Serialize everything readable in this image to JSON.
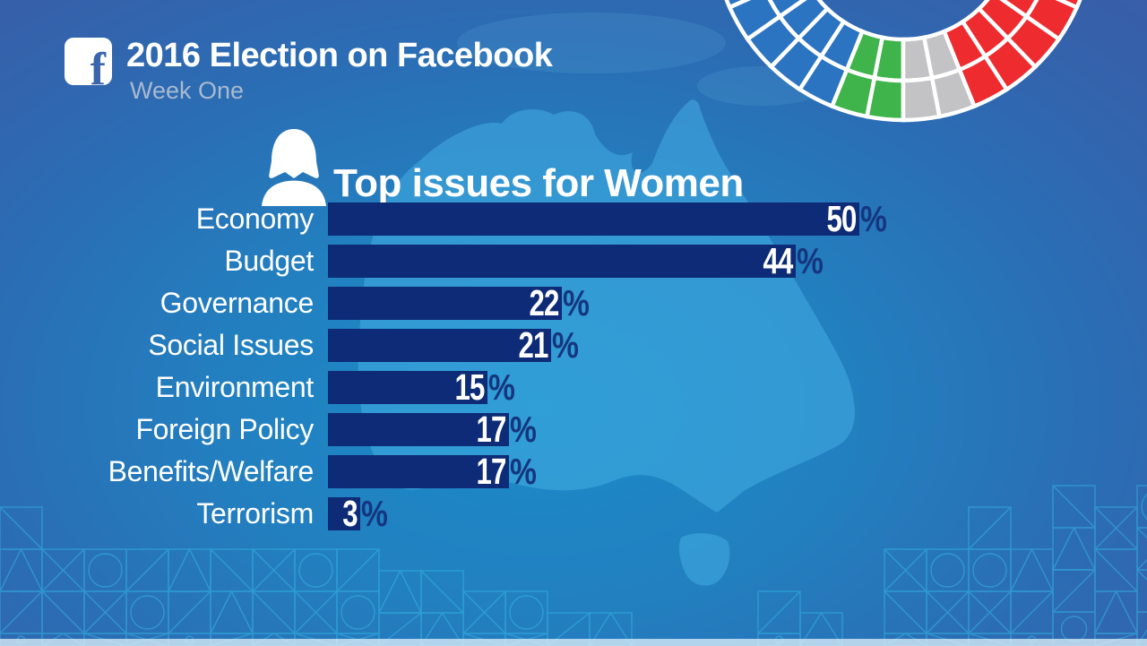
{
  "header": {
    "logo_letter": "f",
    "title": "2016 Election on Facebook",
    "subtitle": "Week One"
  },
  "chart_data": {
    "type": "bar",
    "orientation": "horizontal",
    "title": "Top issues for Women",
    "categories": [
      "Economy",
      "Budget",
      "Governance",
      "Social Issues",
      "Environment",
      "Foreign Policy",
      "Benefits/Welfare",
      "Terrorism"
    ],
    "values": [
      50,
      44,
      22,
      21,
      15,
      17,
      17,
      3
    ],
    "unit": "%",
    "xlim": [
      0,
      50
    ],
    "value_labels_shown": true,
    "grid": false,
    "legend": false
  },
  "parliament_arc": {
    "columns": [
      "blue",
      "blue",
      "blue",
      "blue",
      "blue",
      "blue",
      "green",
      "green",
      "gray",
      "gray",
      "red",
      "red",
      "red",
      "red",
      "red",
      "red"
    ],
    "rows": 2,
    "colors": {
      "blue": "#2b74c2",
      "green": "#3eb44a",
      "gray": "#c3c3c5",
      "red": "#ee2b2e",
      "separator": "#ffffff"
    }
  },
  "colors": {
    "bar_fill": "#0d2b76",
    "value_inside": "#ffffff",
    "percent_sign": "#15367f",
    "map_fill": "#45b1e5",
    "pattern_line": "#35bce8",
    "bottom_strip": "#d6ebf7",
    "title_text": "#ffffff",
    "subtitle_text": "#a9bacf"
  }
}
